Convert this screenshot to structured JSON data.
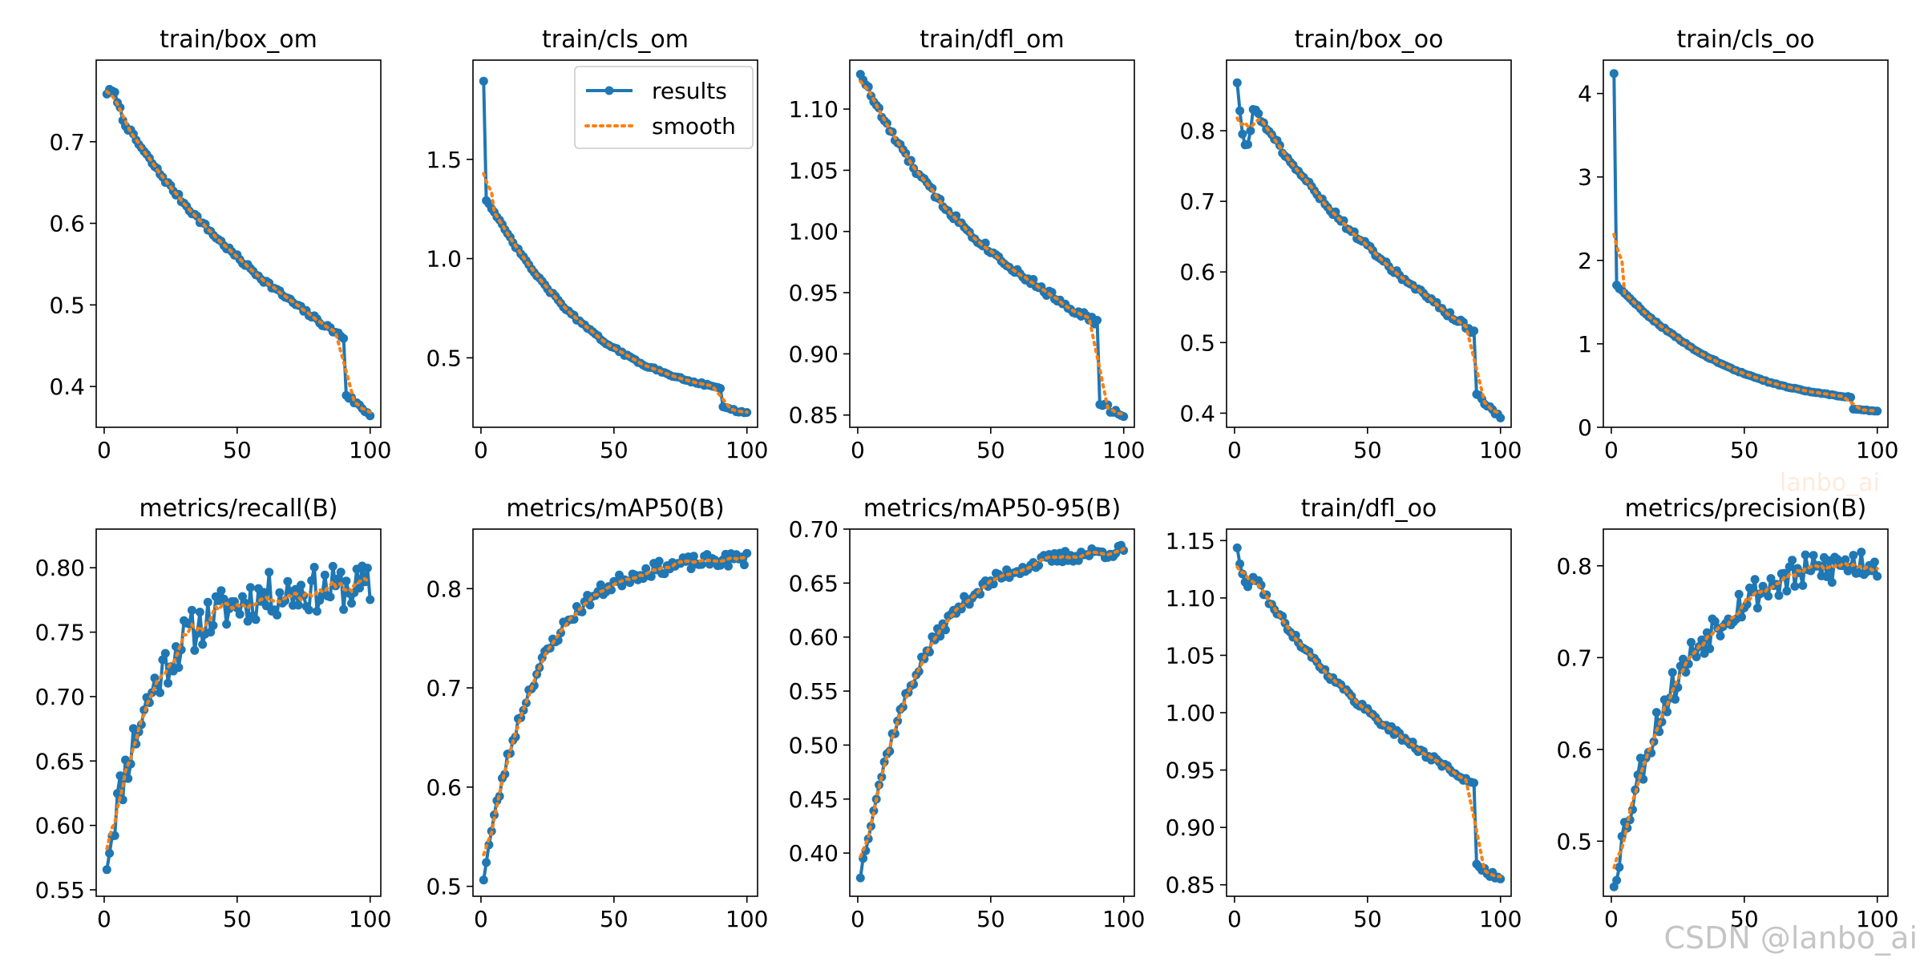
{
  "figure": {
    "series_colors": {
      "results": "#1f77b4",
      "smooth": "#ff7f0e"
    },
    "legend": {
      "results_label": "results",
      "smooth_label": "smooth"
    },
    "watermark": "CSDN @lanbo_ai",
    "watermark_faint": "lanbo_ai"
  },
  "chart_data": [
    {
      "type": "line",
      "title": "train/box_om",
      "xlabel": "",
      "ylabel": "",
      "xlim": [
        -3,
        104
      ],
      "ylim": [
        0.35,
        0.8
      ],
      "xticks": [
        0,
        50,
        100
      ],
      "xtick_labels": [
        "0",
        "50",
        "100"
      ],
      "yticks": [
        0.4,
        0.5,
        0.6,
        0.7
      ],
      "ytick_labels": [
        "0.4",
        "0.5",
        "0.6",
        "0.7"
      ],
      "series": [
        {
          "name": "results",
          "x_start": 1,
          "x_step": 1,
          "gen": {
            "shape": "decay",
            "v0": 0.76,
            "v1": 0.46,
            "k": 0.9,
            "drop_at": 91,
            "v_after": 0.39,
            "v_end": 0.365,
            "bump": 0.015,
            "noise": 0.003
          }
        },
        {
          "name": "smooth",
          "x_start": 1,
          "x_step": 1,
          "gen": {
            "shape": "smooth_of_results"
          }
        }
      ]
    },
    {
      "type": "line",
      "title": "train/cls_om",
      "xlabel": "",
      "ylabel": "",
      "xlim": [
        -3,
        104
      ],
      "ylim": [
        0.15,
        2.0
      ],
      "xticks": [
        0,
        50,
        100
      ],
      "xtick_labels": [
        "0",
        "50",
        "100"
      ],
      "yticks": [
        0.5,
        1.0,
        1.5
      ],
      "ytick_labels": [
        "0.5",
        "1.0",
        "1.5"
      ],
      "legend_position": "top-right",
      "series": [
        {
          "name": "results",
          "x_start": 1,
          "x_step": 1,
          "gen": {
            "shape": "steep",
            "v0": 1.9,
            "v1": 1.3,
            "v_mid": 0.35,
            "drop_at": 91,
            "v_after": 0.25,
            "v_end": 0.22,
            "noise": 0.004
          }
        },
        {
          "name": "smooth",
          "x_start": 1,
          "x_step": 1,
          "gen": {
            "shape": "smooth_of_results"
          }
        }
      ]
    },
    {
      "type": "line",
      "title": "train/dfl_om",
      "xlabel": "",
      "ylabel": "",
      "xlim": [
        -3,
        104
      ],
      "ylim": [
        0.84,
        1.14
      ],
      "xticks": [
        0,
        50,
        100
      ],
      "xtick_labels": [
        "0",
        "50",
        "100"
      ],
      "yticks": [
        0.85,
        0.9,
        0.95,
        1.0,
        1.05,
        1.1
      ],
      "ytick_labels": [
        "0.85",
        "0.90",
        "0.95",
        "1.00",
        "1.05",
        "1.10"
      ],
      "series": [
        {
          "name": "results",
          "x_start": 1,
          "x_step": 1,
          "gen": {
            "shape": "decay",
            "v0": 1.13,
            "v1": 0.925,
            "k": 1.3,
            "drop_at": 91,
            "v_after": 0.86,
            "v_end": 0.848,
            "bump": 0.0,
            "noise": 0.003
          }
        },
        {
          "name": "smooth",
          "x_start": 1,
          "x_step": 1,
          "gen": {
            "shape": "smooth_of_results"
          }
        }
      ]
    },
    {
      "type": "line",
      "title": "train/box_oo",
      "xlabel": "",
      "ylabel": "",
      "xlim": [
        -3,
        104
      ],
      "ylim": [
        0.38,
        0.9
      ],
      "xticks": [
        0,
        50,
        100
      ],
      "xtick_labels": [
        "0",
        "50",
        "100"
      ],
      "yticks": [
        0.4,
        0.5,
        0.6,
        0.7,
        0.8
      ],
      "ytick_labels": [
        "0.4",
        "0.5",
        "0.6",
        "0.7",
        "0.8"
      ],
      "series": [
        {
          "name": "results",
          "x_start": 1,
          "x_step": 1,
          "gen": {
            "shape": "decay",
            "v0": 0.87,
            "v1": 0.515,
            "k": 0.8,
            "drop_at": 91,
            "v_after": 0.425,
            "v_end": 0.395,
            "bump": -0.07,
            "noise": 0.004
          }
        },
        {
          "name": "smooth",
          "x_start": 1,
          "x_step": 1,
          "gen": {
            "shape": "smooth_of_results"
          }
        }
      ]
    },
    {
      "type": "line",
      "title": "train/cls_oo",
      "xlabel": "",
      "ylabel": "",
      "xlim": [
        -3,
        104
      ],
      "ylim": [
        0,
        4.4
      ],
      "xticks": [
        0,
        50,
        100
      ],
      "xtick_labels": [
        "0",
        "50",
        "100"
      ],
      "yticks": [
        0,
        1,
        2,
        3,
        4
      ],
      "ytick_labels": [
        "0",
        "1",
        "2",
        "3",
        "4"
      ],
      "series": [
        {
          "name": "results",
          "x_start": 1,
          "x_step": 1,
          "gen": {
            "shape": "steep",
            "v0": 4.25,
            "v1": 1.7,
            "v_mid": 0.36,
            "drop_at": 91,
            "v_after": 0.22,
            "v_end": 0.19,
            "noise": 0.004
          }
        },
        {
          "name": "smooth",
          "x_start": 1,
          "x_step": 1,
          "gen": {
            "shape": "smooth_of_results"
          }
        }
      ]
    },
    {
      "type": "line",
      "title": "metrics/recall(B)",
      "xlabel": "",
      "ylabel": "",
      "xlim": [
        -3,
        104
      ],
      "ylim": [
        0.545,
        0.83
      ],
      "xticks": [
        0,
        50,
        100
      ],
      "xtick_labels": [
        "0",
        "50",
        "100"
      ],
      "yticks": [
        0.55,
        0.6,
        0.65,
        0.7,
        0.75,
        0.8
      ],
      "ytick_labels": [
        "0.55",
        "0.60",
        "0.65",
        "0.70",
        "0.75",
        "0.80"
      ],
      "series": [
        {
          "name": "results",
          "x_start": 1,
          "x_step": 1,
          "gen": {
            "shape": "rise",
            "v0": 0.575,
            "v_end": 0.785,
            "k": 5.5,
            "noise": 0.018,
            "seed": 11
          }
        },
        {
          "name": "smooth",
          "x_start": 1,
          "x_step": 1,
          "gen": {
            "shape": "smooth_of_results"
          }
        }
      ]
    },
    {
      "type": "line",
      "title": "metrics/mAP50(B)",
      "xlabel": "",
      "ylabel": "",
      "xlim": [
        -3,
        104
      ],
      "ylim": [
        0.49,
        0.86
      ],
      "xticks": [
        0,
        50,
        100
      ],
      "xtick_labels": [
        "0",
        "50",
        "100"
      ],
      "yticks": [
        0.5,
        0.6,
        0.7,
        0.8
      ],
      "ytick_labels": [
        "0.5",
        "0.6",
        "0.7",
        "0.8"
      ],
      "series": [
        {
          "name": "results",
          "x_start": 1,
          "x_step": 1,
          "gen": {
            "shape": "rise",
            "v0": 0.51,
            "v_end": 0.83,
            "k": 5.0,
            "noise": 0.007,
            "seed": 23
          }
        },
        {
          "name": "smooth",
          "x_start": 1,
          "x_step": 1,
          "gen": {
            "shape": "smooth_of_results"
          }
        }
      ]
    },
    {
      "type": "line",
      "title": "metrics/mAP50-95(B)",
      "xlabel": "",
      "ylabel": "",
      "xlim": [
        -3,
        104
      ],
      "ylim": [
        0.36,
        0.7
      ],
      "xticks": [
        0,
        50,
        100
      ],
      "xtick_labels": [
        "0",
        "50",
        "100"
      ],
      "yticks": [
        0.4,
        0.45,
        0.5,
        0.55,
        0.6,
        0.65,
        0.7
      ],
      "ytick_labels": [
        "0.40",
        "0.45",
        "0.50",
        "0.55",
        "0.60",
        "0.65",
        "0.70"
      ],
      "series": [
        {
          "name": "results",
          "x_start": 1,
          "x_step": 1,
          "gen": {
            "shape": "rise",
            "v0": 0.38,
            "v_end": 0.68,
            "k": 4.5,
            "noise": 0.006,
            "seed": 37
          }
        },
        {
          "name": "smooth",
          "x_start": 1,
          "x_step": 1,
          "gen": {
            "shape": "smooth_of_results"
          }
        }
      ]
    },
    {
      "type": "line",
      "title": "train/dfl_oo",
      "xlabel": "",
      "ylabel": "",
      "xlim": [
        -3,
        104
      ],
      "ylim": [
        0.84,
        1.16
      ],
      "xticks": [
        0,
        50,
        100
      ],
      "xtick_labels": [
        "0",
        "50",
        "100"
      ],
      "yticks": [
        0.85,
        0.9,
        0.95,
        1.0,
        1.05,
        1.1,
        1.15
      ],
      "ytick_labels": [
        "0.85",
        "0.90",
        "0.95",
        "1.00",
        "1.05",
        "1.10",
        "1.15"
      ],
      "series": [
        {
          "name": "results",
          "x_start": 1,
          "x_step": 1,
          "gen": {
            "shape": "decay",
            "v0": 1.145,
            "v1": 0.938,
            "k": 1.1,
            "drop_at": 91,
            "v_after": 0.865,
            "v_end": 0.855,
            "bump": -0.02,
            "noise": 0.003
          }
        },
        {
          "name": "smooth",
          "x_start": 1,
          "x_step": 1,
          "gen": {
            "shape": "smooth_of_results"
          }
        }
      ]
    },
    {
      "type": "line",
      "title": "metrics/precision(B)",
      "xlabel": "",
      "ylabel": "",
      "xlim": [
        -3,
        104
      ],
      "ylim": [
        0.44,
        0.84
      ],
      "xticks": [
        0,
        50,
        100
      ],
      "xtick_labels": [
        "0",
        "50",
        "100"
      ],
      "yticks": [
        0.5,
        0.6,
        0.7,
        0.8
      ],
      "ytick_labels": [
        "0.5",
        "0.6",
        "0.7",
        "0.8"
      ],
      "series": [
        {
          "name": "results",
          "x_start": 1,
          "x_step": 1,
          "gen": {
            "shape": "rise",
            "v0": 0.46,
            "v_end": 0.805,
            "k": 4.0,
            "noise": 0.02,
            "seed": 53
          }
        },
        {
          "name": "smooth",
          "x_start": 1,
          "x_step": 1,
          "gen": {
            "shape": "smooth_of_results"
          }
        }
      ]
    }
  ]
}
